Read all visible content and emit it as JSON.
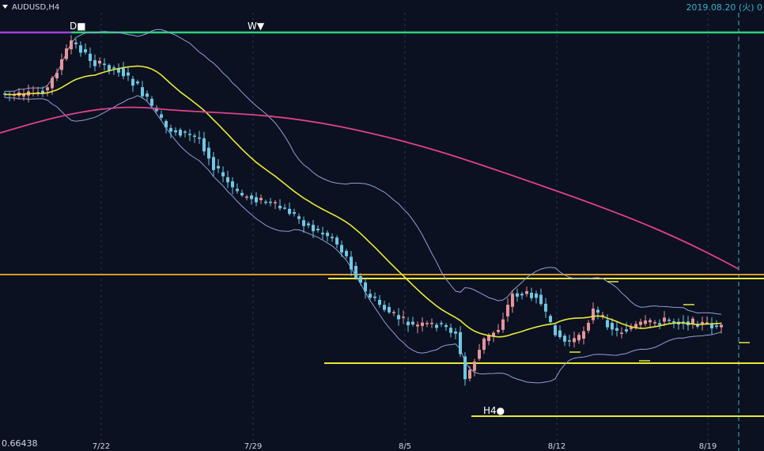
{
  "chart_data": {
    "type": "candlestick",
    "title": "AUDUSD,H4",
    "timestamp": "2019.08.20 (火) 0",
    "x_ticks": [
      "7/22",
      "7/29",
      "8/5",
      "8/12",
      "8/19"
    ],
    "price_label": "0.66438",
    "markers": {
      "daily": "D■",
      "weekly": "W▼",
      "h4": "H4●"
    },
    "indicators": [
      {
        "name": "sma",
        "color": "#e8e83a"
      },
      {
        "name": "bollinger",
        "color": "#8f9fd8"
      },
      {
        "name": "sma_long",
        "color": "#e0408f"
      }
    ],
    "levels": [
      {
        "name": "daily-high",
        "color": "#2fd17a"
      },
      {
        "name": "weekly-high",
        "color": "#a040e0"
      },
      {
        "name": "resistance",
        "color": "#d99a2b"
      },
      {
        "name": "range-top",
        "color": "#e8e83a"
      },
      {
        "name": "range-bottom",
        "color": "#e8e83a"
      },
      {
        "name": "h4-low",
        "color": "#e8e83a"
      }
    ],
    "up_color": "#e8939a",
    "down_color": "#6fc8e4"
  }
}
